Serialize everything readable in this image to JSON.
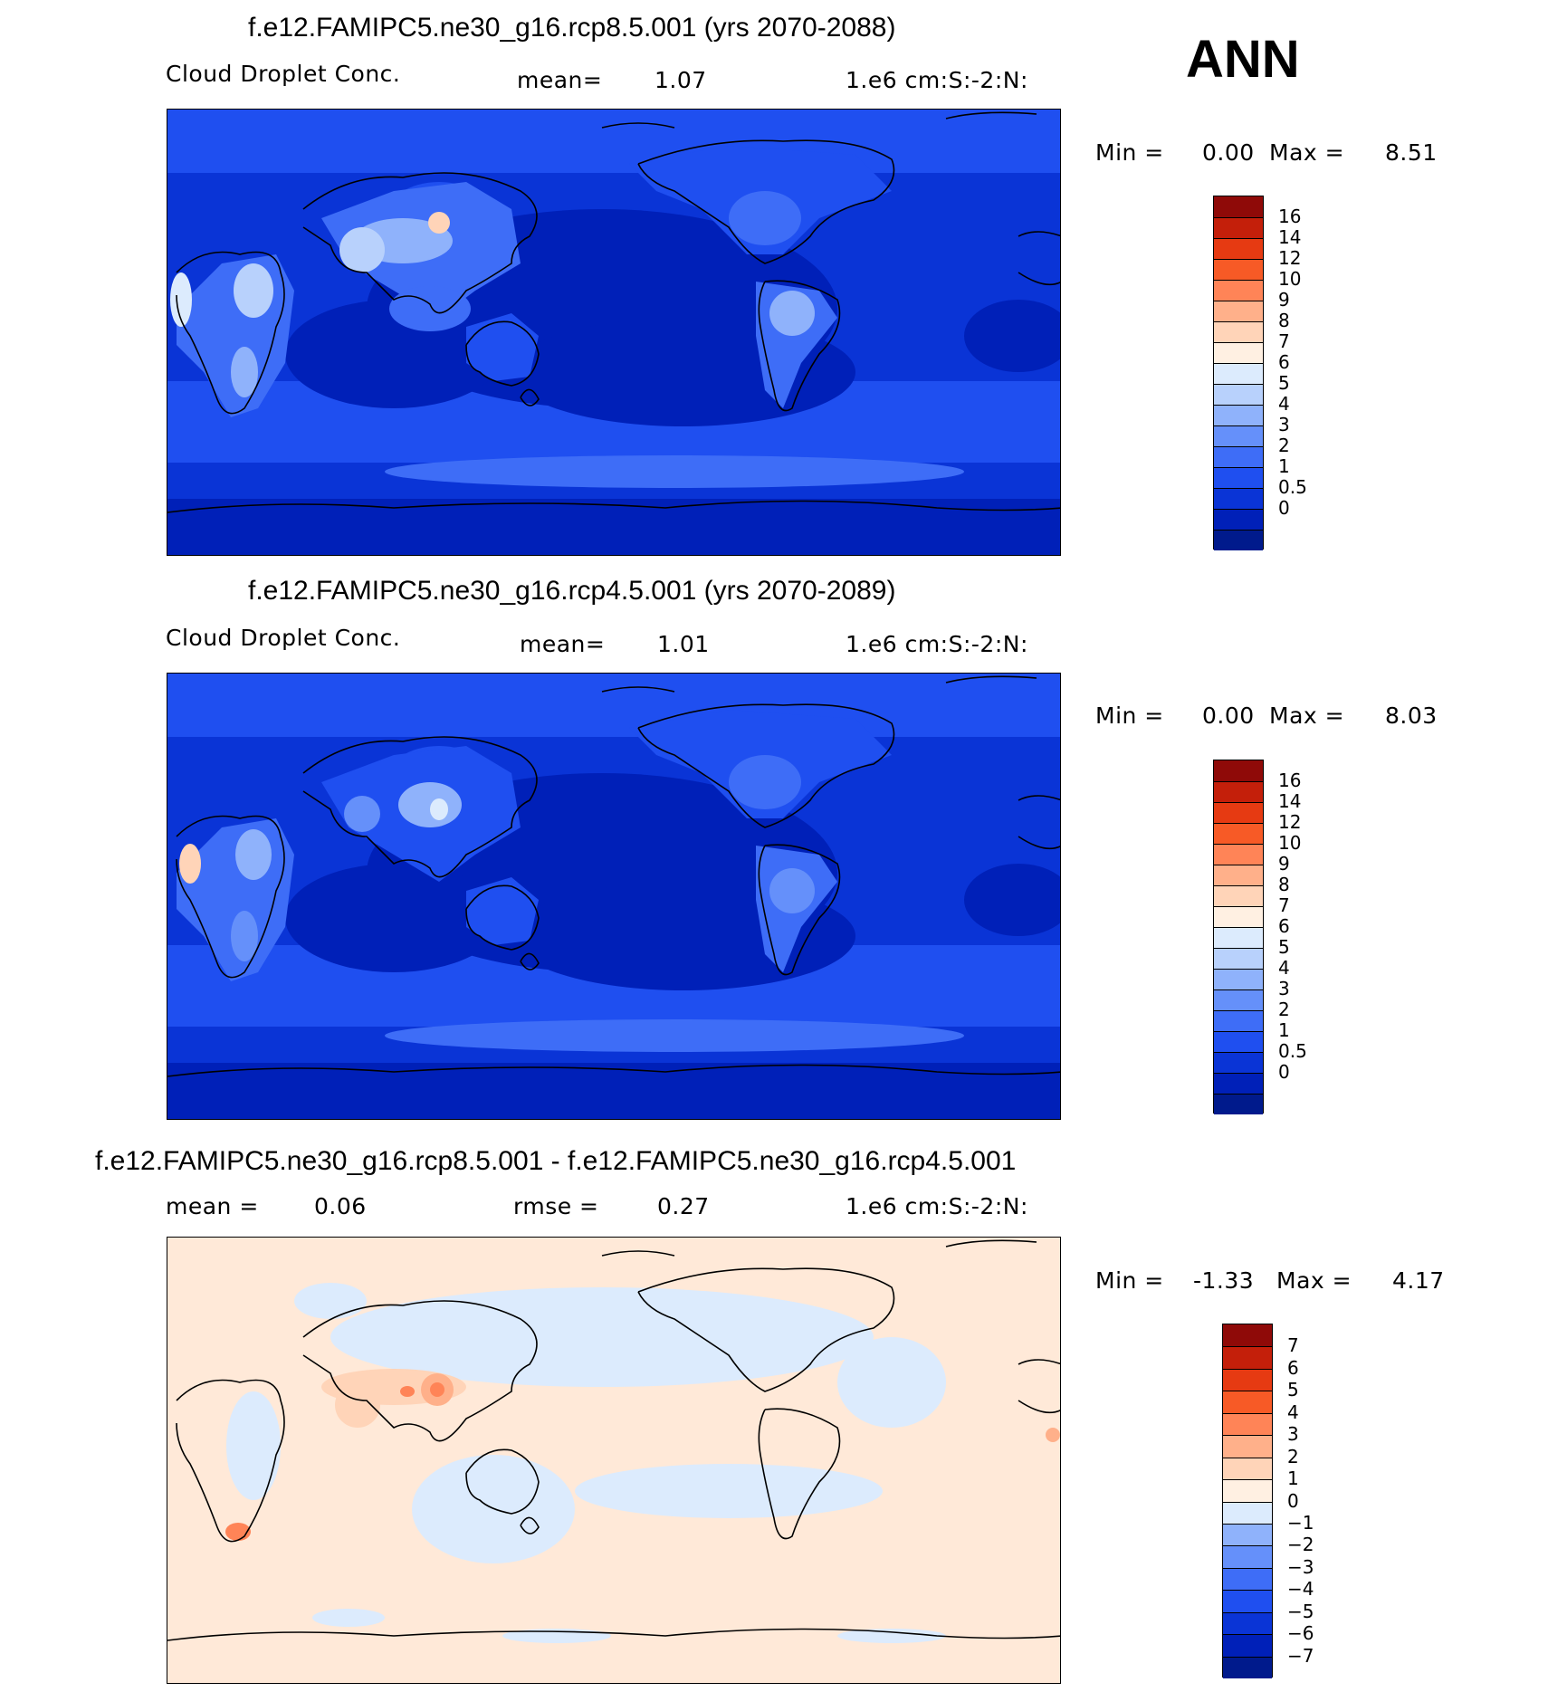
{
  "season": "ANN",
  "panels": [
    {
      "title": "f.e12.FAMIPC5.ne30_g16.rcp8.5.001 (yrs 2070-2088)",
      "left_label": "Cloud Droplet Conc.",
      "stat_label": "mean=",
      "stat_value": "1.07",
      "units": "1.e6 cm:S:-2:N:",
      "min_label": "Min =",
      "min_value": "0.00",
      "max_label": "Max =",
      "max_value": "8.51",
      "colorbar": {
        "levels": [
          "0",
          "0.5",
          "1",
          "2",
          "3",
          "4",
          "5",
          "6",
          "7",
          "8",
          "9",
          "10",
          "12",
          "14",
          "16"
        ],
        "colors": [
          "#001a8c",
          "#0020b8",
          "#0a34d6",
          "#1f4ff0",
          "#3e6df7",
          "#6590fa",
          "#8fb2fb",
          "#b8d1fc",
          "#dcebfd",
          "#fff0e2",
          "#ffd4b8",
          "#ffb08a",
          "#ff8457",
          "#f75a26",
          "#e63a12",
          "#c41f0a",
          "#8f0a08"
        ]
      },
      "field_stats": {
        "fraction_range": [
          0.0,
          0.51
        ]
      }
    },
    {
      "title": "f.e12.FAMIPC5.ne30_g16.rcp4.5.001 (yrs 2070-2089)",
      "left_label": "Cloud Droplet Conc.",
      "stat_label": "mean=",
      "stat_value": "1.01",
      "units": "1.e6 cm:S:-2:N:",
      "min_label": "Min =",
      "min_value": "0.00",
      "max_label": "Max =",
      "max_value": "8.03",
      "colorbar": {
        "levels": [
          "0",
          "0.5",
          "1",
          "2",
          "3",
          "4",
          "5",
          "6",
          "7",
          "8",
          "9",
          "10",
          "12",
          "14",
          "16"
        ],
        "colors": [
          "#001a8c",
          "#0020b8",
          "#0a34d6",
          "#1f4ff0",
          "#3e6df7",
          "#6590fa",
          "#8fb2fb",
          "#b8d1fc",
          "#dcebfd",
          "#fff0e2",
          "#ffd4b8",
          "#ffb08a",
          "#ff8457",
          "#f75a26",
          "#e63a12",
          "#c41f0a",
          "#8f0a08"
        ]
      }
    },
    {
      "title": "f.e12.FAMIPC5.ne30_g16.rcp8.5.001 - f.e12.FAMIPC5.ne30_g16.rcp4.5.001",
      "left_label": "mean =",
      "left_value": "0.06",
      "stat_label": "rmse =",
      "stat_value": "0.27",
      "units": "1.e6 cm:S:-2:N:",
      "min_label": "Min =",
      "min_value": "-1.33",
      "max_label": "Max =",
      "max_value": "4.17",
      "colorbar": {
        "levels": [
          "-7",
          "-6",
          "-5",
          "-4",
          "-3",
          "-2",
          "-1",
          "0",
          "1",
          "2",
          "3",
          "4",
          "5",
          "6",
          "7"
        ],
        "colors": [
          "#001a8c",
          "#0020b8",
          "#0a34d6",
          "#1f4ff0",
          "#3e6df7",
          "#6590fa",
          "#8fb2fb",
          "#dcebfd",
          "#fff0e2",
          "#ffd4b8",
          "#ffb08a",
          "#ff8457",
          "#f75a26",
          "#e63a12",
          "#c41f0a",
          "#8f0a08"
        ]
      }
    }
  ]
}
